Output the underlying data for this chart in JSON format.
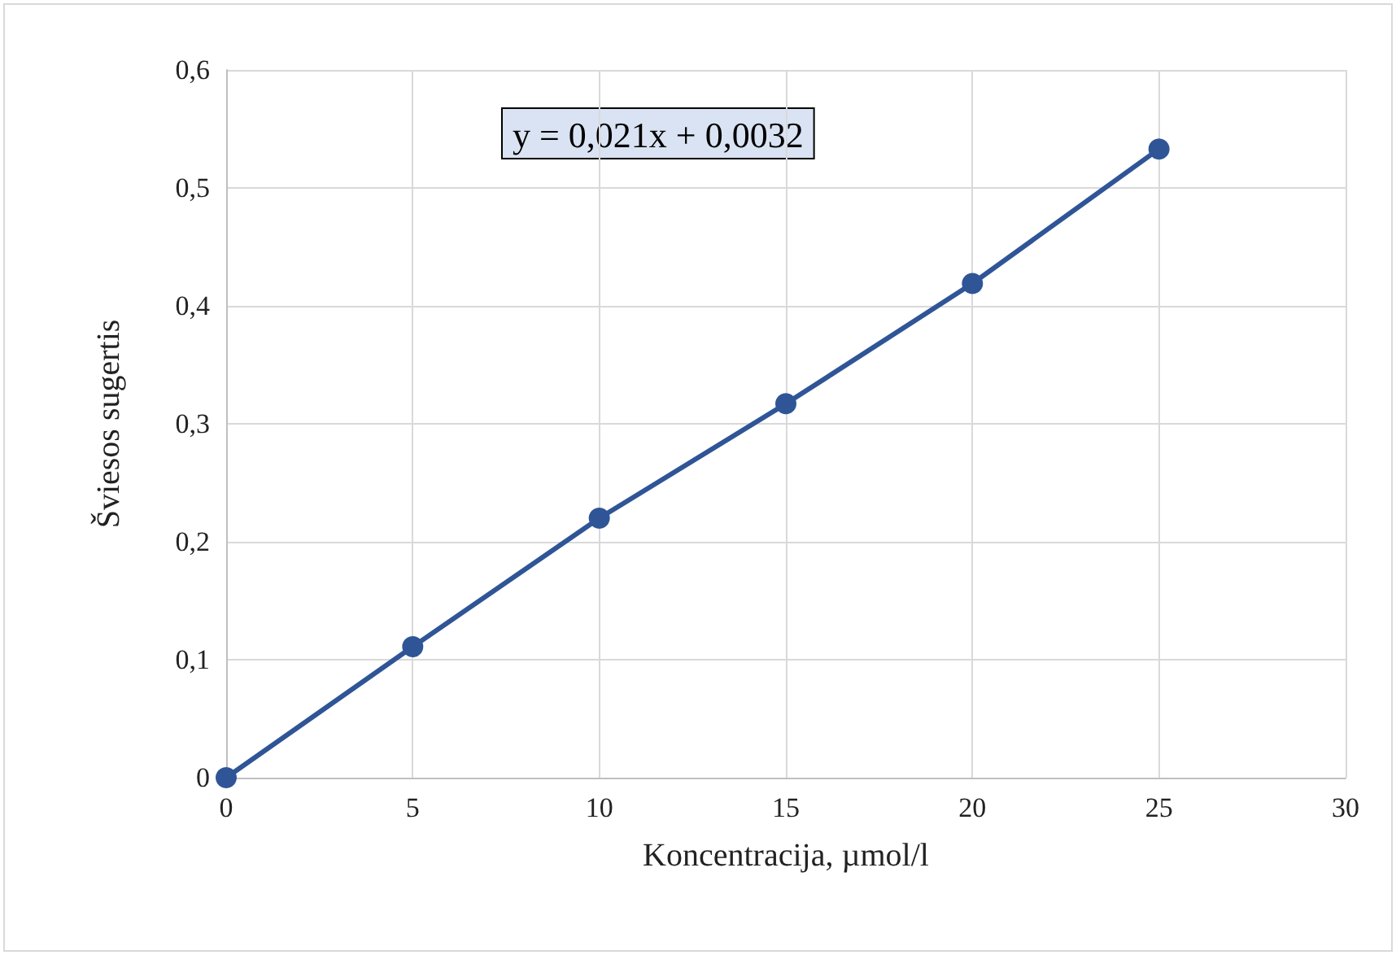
{
  "chart_data": {
    "type": "line",
    "xlabel": "Koncentracija, µmol/l",
    "ylabel": "Šviesos sugertis",
    "annotations": [
      "y = 0,021x + 0,0032"
    ],
    "x": [
      0,
      5,
      10,
      15,
      20,
      25
    ],
    "series": [
      {
        "color": "#2f5597",
        "values": [
          0,
          0.111,
          0.22,
          0.317,
          0.419,
          0.533
        ]
      }
    ],
    "xlim": [
      0,
      30
    ],
    "xticks": [
      0,
      5,
      10,
      15,
      20,
      25,
      30
    ],
    "ylim": [
      0,
      0.6
    ],
    "yticks": [
      0,
      {
        "value": 0.1,
        "label": "0,1"
      },
      {
        "value": 0.2,
        "label": "0,2"
      },
      {
        "value": 0.3,
        "label": "0,3"
      },
      {
        "value": 0.4,
        "label": "0,4"
      },
      {
        "value": 0.5,
        "label": "0,5"
      },
      {
        "value": 0.6,
        "label": "0,6"
      }
    ],
    "grid": true,
    "marker": "circle",
    "line_style": "solid"
  }
}
